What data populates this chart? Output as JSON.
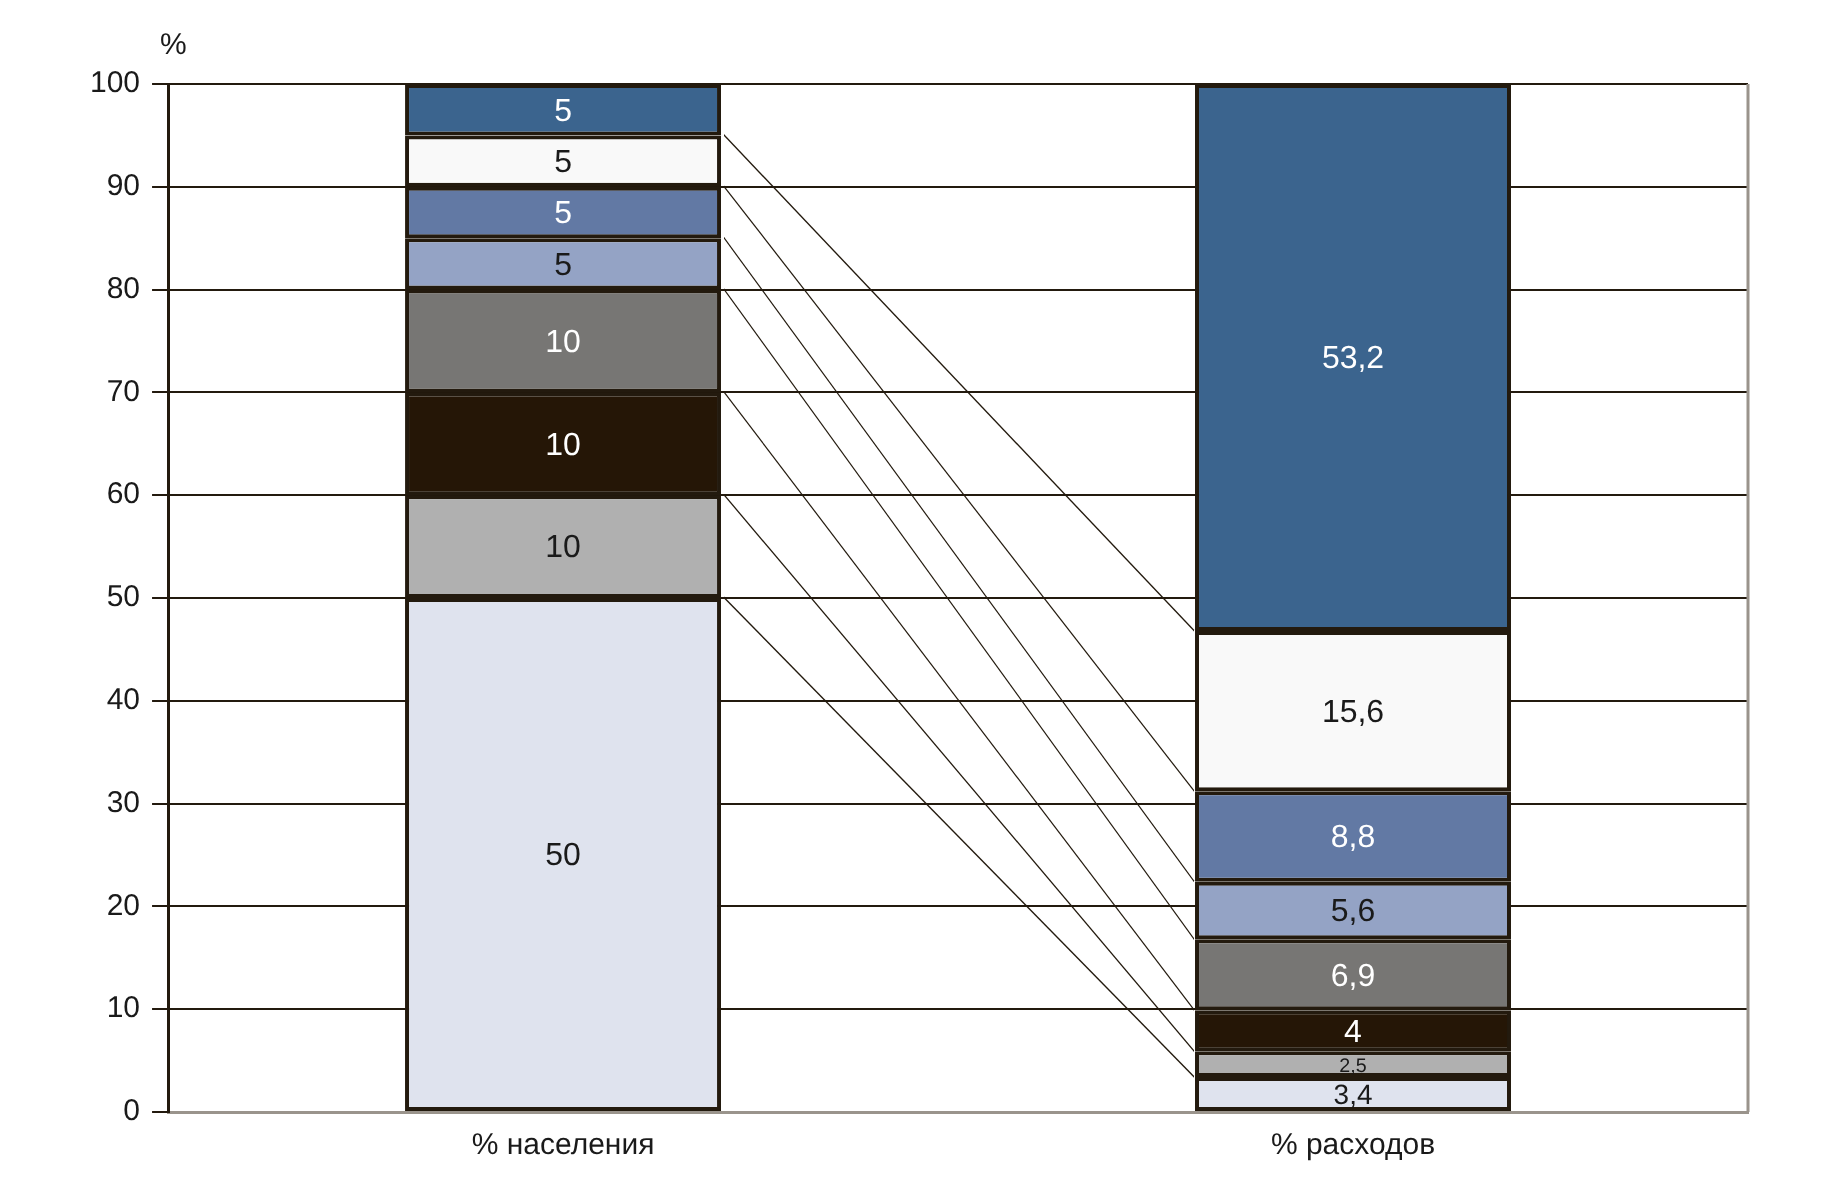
{
  "chart_data": {
    "type": "bar",
    "stacked": true,
    "ylabel": "%",
    "categories": [
      "% населения",
      "% расходов"
    ],
    "ylim": [
      0,
      100
    ],
    "yticks": [
      0,
      10,
      20,
      30,
      40,
      50,
      60,
      70,
      80,
      90,
      100
    ],
    "grid": "y",
    "series": [
      {
        "color": "#dfe3ee",
        "values": [
          50,
          3.4
        ],
        "value_labels": [
          "50",
          "3,4"
        ]
      },
      {
        "color": "#b0b0b0",
        "values": [
          10,
          2.5
        ],
        "value_labels": [
          "10",
          "2,5"
        ]
      },
      {
        "color": "#251606",
        "values": [
          10,
          4
        ],
        "value_labels": [
          "10",
          "4"
        ]
      },
      {
        "color": "#777674",
        "values": [
          10,
          6.9
        ],
        "value_labels": [
          "10",
          "6,9"
        ]
      },
      {
        "color": "#94a3c5",
        "values": [
          5,
          5.6
        ],
        "value_labels": [
          "5",
          "5,6"
        ]
      },
      {
        "color": "#6279a4",
        "values": [
          5,
          8.8
        ],
        "value_labels": [
          "5",
          "8,8"
        ]
      },
      {
        "color": "#f9f9f9",
        "values": [
          5,
          15.6
        ],
        "value_labels": [
          "5",
          "15,6"
        ]
      },
      {
        "color": "#3b648e",
        "values": [
          5,
          53.2
        ],
        "value_labels": [
          "5",
          "53,2"
        ]
      }
    ]
  }
}
